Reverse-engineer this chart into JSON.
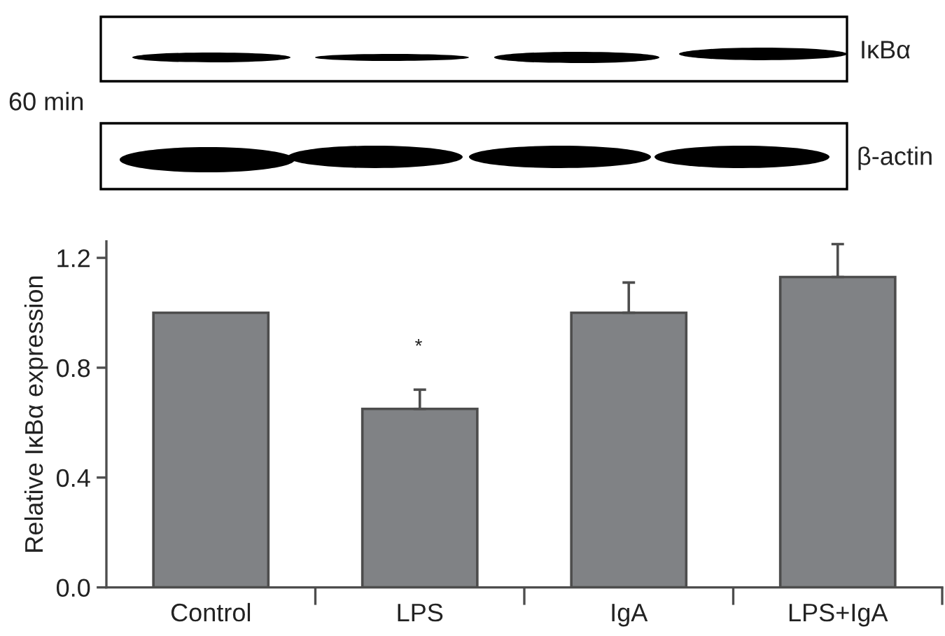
{
  "chart_data": {
    "type": "bar",
    "categories": [
      "Control",
      "LPS",
      "IgA",
      "LPS+IgA"
    ],
    "values": [
      1.0,
      0.65,
      1.0,
      1.13
    ],
    "errors": [
      null,
      [
        0.65,
        0.72
      ],
      [
        1.0,
        1.11
      ],
      [
        1.13,
        1.25
      ]
    ],
    "color": "#808285",
    "ylabel": "Relative IκBα expression",
    "ylim": [
      0,
      1.26
    ],
    "yticks": [
      {
        "value": 0,
        "label": "0.0"
      },
      0.4,
      0.8,
      1.2
    ],
    "annotations": [
      "*",
      "IκBα",
      "β-actin",
      "60 min"
    ]
  }
}
